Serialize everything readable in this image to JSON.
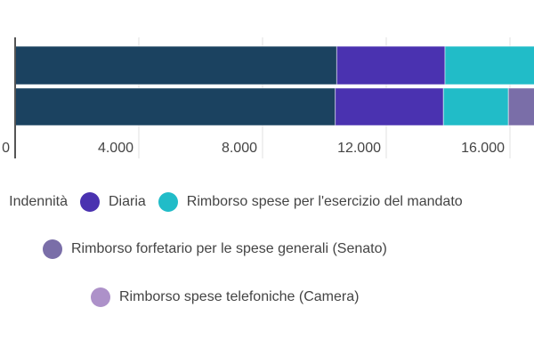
{
  "chart_data": {
    "type": "bar",
    "orientation": "horizontal",
    "stacked": true,
    "x_ticks": [
      "0",
      "4.000",
      "8.000",
      "12.000",
      "16.000"
    ],
    "x_tick_values": [
      0,
      4000,
      8000,
      12000,
      16000
    ],
    "xlim": [
      0,
      20000
    ],
    "grid": true,
    "legend_position": "bottom",
    "series": [
      {
        "name": "Indennità",
        "color": "#1b4260",
        "values": [
          10400,
          10350
        ]
      },
      {
        "name": "Diaria",
        "color": "#4a32b0",
        "values": [
          3500,
          3500
        ]
      },
      {
        "name": "Rimborso spese per l'esercizio del mandato",
        "color": "#21bcc8",
        "values": [
          4200,
          2100
        ]
      },
      {
        "name": "Rimborso forfetario per le spese generali (Senato)",
        "color": "#7a6ea8",
        "values": [
          0,
          1700
        ]
      },
      {
        "name": "Rimborso spese telefoniche (Camera)",
        "color": "#ad91c9",
        "values": [
          0,
          0
        ]
      }
    ]
  }
}
